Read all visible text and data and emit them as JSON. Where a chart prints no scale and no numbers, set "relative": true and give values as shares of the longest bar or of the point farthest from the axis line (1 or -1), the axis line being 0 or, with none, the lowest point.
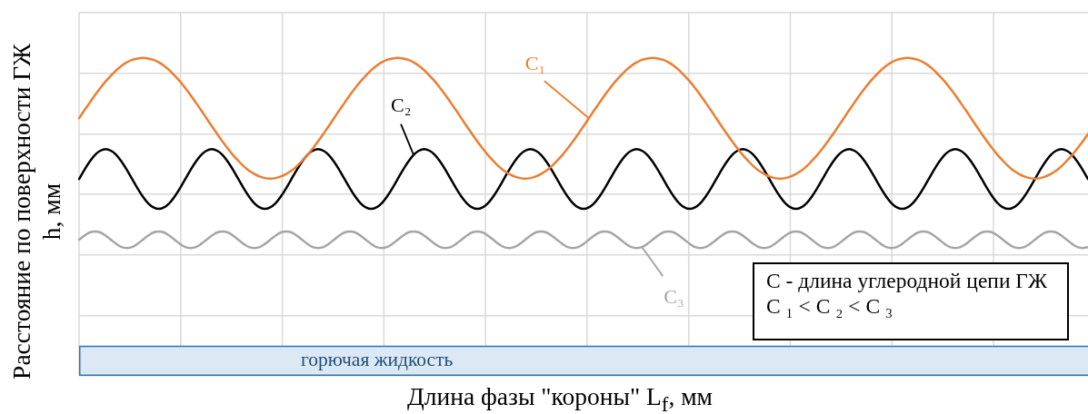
{
  "chart_data": {
    "type": "line",
    "xlabel": "Длина фазы \"короны\" L$_{f}$, мм",
    "ylabel": "Расстояние по поверхности ГЖ\nh, мм",
    "relative": true,
    "grid": true,
    "categories": [
      null,
      null,
      null,
      null,
      null,
      null,
      null,
      null,
      null,
      null,
      null,
      null,
      null,
      null,
      null,
      null,
      null,
      null,
      null,
      null,
      null,
      null,
      null,
      null,
      null,
      null,
      null,
      null,
      null,
      null,
      null,
      null,
      null,
      null,
      null,
      null,
      null,
      null,
      null,
      null,
      null,
      null,
      null,
      null,
      null,
      null,
      null,
      null,
      null,
      null,
      null,
      null,
      null,
      null,
      null,
      null,
      null,
      null,
      null,
      null,
      null,
      null,
      null,
      null,
      null,
      null,
      null,
      null,
      null,
      null,
      null,
      null,
      null,
      null,
      null,
      null,
      null,
      null,
      null,
      null,
      null,
      null,
      null,
      null,
      null,
      null,
      null,
      null,
      null,
      null,
      null,
      null,
      null,
      null,
      null,
      null,
      null,
      null,
      null,
      null,
      null,
      null,
      null,
      null,
      null,
      null,
      null,
      null,
      null,
      null,
      null,
      null,
      null,
      null,
      null,
      null,
      null,
      null,
      null,
      null,
      null,
      null,
      null,
      null,
      null,
      null,
      null,
      null,
      null,
      null,
      null,
      null,
      null,
      null,
      null,
      null,
      null,
      null,
      null,
      null,
      null,
      null,
      null,
      null,
      null,
      null,
      null,
      null,
      null,
      null,
      null,
      null,
      null,
      null,
      null,
      null,
      null,
      null,
      null,
      null,
      null,
      null,
      null,
      null,
      null,
      null,
      null,
      null,
      null,
      null,
      null,
      null,
      null,
      null,
      null,
      null,
      null,
      null,
      null,
      null,
      null,
      null,
      null,
      null,
      null,
      null,
      null,
      null,
      null,
      null,
      null
    ],
    "series": [
      {
        "name": "C₁",
        "color": "#ed7d31",
        "values": [
          0.81,
          0.835,
          0.859,
          0.883,
          0.905,
          0.926,
          0.944,
          0.961,
          0.975,
          0.986,
          0.994,
          0.998,
          1,
          0.998,
          0.994,
          0.986,
          0.975,
          0.961,
          0.944,
          0.926,
          0.905,
          0.883,
          0.859,
          0.835,
          0.81,
          0.785,
          0.761,
          0.737,
          0.715,
          0.694,
          0.676,
          0.659,
          0.645,
          0.635,
          0.627,
          0.622,
          0.62,
          0.622,
          0.627,
          0.635,
          0.645,
          0.659,
          0.676,
          0.694,
          0.715,
          0.737,
          0.761,
          0.785,
          0.81,
          0.835,
          0.859,
          0.883,
          0.905,
          0.926,
          0.944,
          0.961,
          0.975,
          0.986,
          0.994,
          0.998,
          1,
          0.998,
          0.994,
          0.986,
          0.975,
          0.961,
          0.944,
          0.926,
          0.905,
          0.883,
          0.859,
          0.835,
          0.81,
          0.785,
          0.761,
          0.737,
          0.715,
          0.694,
          0.676,
          0.659,
          0.645,
          0.635,
          0.627,
          0.622,
          0.62,
          0.622,
          0.627,
          0.635,
          0.645,
          0.659,
          0.676,
          0.694,
          0.715,
          0.737,
          0.761,
          0.785,
          0.81,
          0.835,
          0.859,
          0.883,
          0.905,
          0.926,
          0.944,
          0.961,
          0.975,
          0.986,
          0.994,
          0.998,
          1,
          0.998,
          0.994,
          0.986,
          0.975,
          0.961,
          0.944,
          0.926,
          0.905,
          0.883,
          0.859,
          0.835,
          0.81,
          0.785,
          0.761,
          0.737,
          0.715,
          0.694,
          0.676,
          0.659,
          0.645,
          0.635,
          0.627,
          0.622,
          0.62,
          0.622,
          0.627,
          0.635,
          0.645,
          0.659,
          0.676,
          0.694,
          0.715,
          0.737,
          0.761,
          0.785,
          0.81,
          0.835,
          0.859,
          0.883,
          0.905,
          0.926,
          0.944,
          0.961,
          0.975,
          0.986,
          0.994,
          0.998,
          1,
          0.998,
          0.994,
          0.986,
          0.975,
          0.961,
          0.944,
          0.926,
          0.905,
          0.883,
          0.859,
          0.835,
          0.81,
          0.785,
          0.761,
          0.737,
          0.715,
          0.694,
          0.676,
          0.659,
          0.645,
          0.635,
          0.627,
          0.622,
          0.62,
          0.622,
          0.627,
          0.635,
          0.645,
          0.659,
          0.676,
          0.694,
          0.715,
          0.737,
          0.761
        ]
      },
      {
        "name": "C₂",
        "color": "#000000",
        "values": [
          0.619,
          0.648,
          0.674,
          0.695,
          0.708,
          0.713,
          0.708,
          0.695,
          0.674,
          0.648,
          0.619,
          0.59,
          0.564,
          0.543,
          0.53,
          0.525,
          0.53,
          0.543,
          0.564,
          0.59,
          0.619,
          0.648,
          0.674,
          0.695,
          0.708,
          0.713,
          0.708,
          0.695,
          0.674,
          0.648,
          0.619,
          0.59,
          0.564,
          0.543,
          0.53,
          0.525,
          0.53,
          0.543,
          0.564,
          0.59,
          0.619,
          0.648,
          0.674,
          0.695,
          0.708,
          0.713,
          0.708,
          0.695,
          0.674,
          0.648,
          0.619,
          0.59,
          0.564,
          0.543,
          0.53,
          0.525,
          0.53,
          0.543,
          0.564,
          0.59,
          0.619,
          0.648,
          0.674,
          0.695,
          0.708,
          0.713,
          0.708,
          0.695,
          0.674,
          0.648,
          0.619,
          0.59,
          0.564,
          0.543,
          0.53,
          0.525,
          0.53,
          0.543,
          0.564,
          0.59,
          0.619,
          0.648,
          0.674,
          0.695,
          0.708,
          0.713,
          0.708,
          0.695,
          0.674,
          0.648,
          0.619,
          0.59,
          0.564,
          0.543,
          0.53,
          0.525,
          0.53,
          0.543,
          0.564,
          0.59,
          0.619,
          0.648,
          0.674,
          0.695,
          0.708,
          0.713,
          0.708,
          0.695,
          0.674,
          0.648,
          0.619,
          0.59,
          0.564,
          0.543,
          0.53,
          0.525,
          0.53,
          0.543,
          0.564,
          0.59,
          0.619,
          0.648,
          0.674,
          0.695,
          0.708,
          0.713,
          0.708,
          0.695,
          0.674,
          0.648,
          0.619,
          0.59,
          0.564,
          0.543,
          0.53,
          0.525,
          0.53,
          0.543,
          0.564,
          0.59,
          0.619,
          0.648,
          0.674,
          0.695,
          0.708,
          0.713,
          0.708,
          0.695,
          0.674,
          0.648,
          0.619,
          0.59,
          0.564,
          0.543,
          0.53,
          0.525,
          0.53,
          0.543,
          0.564,
          0.59,
          0.619,
          0.648,
          0.674,
          0.695,
          0.708,
          0.713,
          0.708,
          0.695,
          0.674,
          0.648,
          0.619,
          0.59,
          0.564,
          0.543,
          0.53,
          0.525,
          0.53,
          0.543,
          0.564,
          0.59,
          0.619,
          0.648,
          0.674,
          0.695,
          0.708,
          0.713,
          0.708,
          0.695,
          0.674,
          0.648,
          0.619
        ]
      },
      {
        "name": "C₃",
        "color": "#a5a5a5",
        "values": [
          0.428,
          0.441,
          0.451,
          0.454,
          0.451,
          0.441,
          0.428,
          0.415,
          0.405,
          0.402,
          0.405,
          0.415,
          0.428,
          0.441,
          0.451,
          0.454,
          0.451,
          0.441,
          0.428,
          0.415,
          0.405,
          0.402,
          0.405,
          0.415,
          0.428,
          0.441,
          0.451,
          0.454,
          0.451,
          0.441,
          0.428,
          0.415,
          0.405,
          0.402,
          0.405,
          0.415,
          0.428,
          0.441,
          0.451,
          0.454,
          0.451,
          0.441,
          0.428,
          0.415,
          0.405,
          0.402,
          0.405,
          0.415,
          0.428,
          0.441,
          0.451,
          0.454,
          0.451,
          0.441,
          0.428,
          0.415,
          0.405,
          0.402,
          0.405,
          0.415,
          0.428,
          0.441,
          0.451,
          0.454,
          0.451,
          0.441,
          0.428,
          0.415,
          0.405,
          0.402,
          0.405,
          0.415,
          0.428,
          0.441,
          0.451,
          0.454,
          0.451,
          0.441,
          0.428,
          0.415,
          0.405,
          0.402,
          0.405,
          0.415,
          0.428,
          0.441,
          0.451,
          0.454,
          0.451,
          0.441,
          0.428,
          0.415,
          0.405,
          0.402,
          0.405,
          0.415,
          0.428,
          0.441,
          0.451,
          0.454,
          0.451,
          0.441,
          0.428,
          0.415,
          0.405,
          0.402,
          0.405,
          0.415,
          0.428,
          0.441,
          0.451,
          0.454,
          0.451,
          0.441,
          0.428,
          0.415,
          0.405,
          0.402,
          0.405,
          0.415,
          0.428,
          0.441,
          0.451,
          0.454,
          0.451,
          0.441,
          0.428,
          0.415,
          0.405,
          0.402,
          0.405,
          0.415,
          0.428,
          0.441,
          0.451,
          0.454,
          0.451,
          0.441,
          0.428,
          0.415,
          0.405,
          0.402,
          0.405,
          0.415,
          0.428,
          0.441,
          0.451,
          0.454,
          0.451,
          0.441,
          0.428,
          0.415,
          0.405,
          0.402,
          0.405,
          0.415,
          0.428,
          0.441,
          0.451,
          0.454,
          0.451,
          0.441,
          0.428,
          0.415,
          0.405,
          0.402,
          0.405,
          0.415,
          0.428,
          0.441,
          0.451,
          0.454,
          0.451,
          0.441,
          0.428,
          0.415,
          0.405,
          0.402,
          0.405,
          0.415,
          0.428,
          0.441,
          0.451,
          0.454,
          0.451,
          0.441,
          0.428,
          0.415,
          0.405,
          0.402,
          0.405
        ]
      }
    ],
    "bands": [
      {
        "axis": "y",
        "from": 0,
        "to": 0.095,
        "label": "горючая жидкость",
        "color": "#dde8f5"
      }
    ],
    "annotations": [
      "C - длина углеродной цепи ГЖ",
      "C ₁ < C ₂ < C ₃"
    ]
  }
}
